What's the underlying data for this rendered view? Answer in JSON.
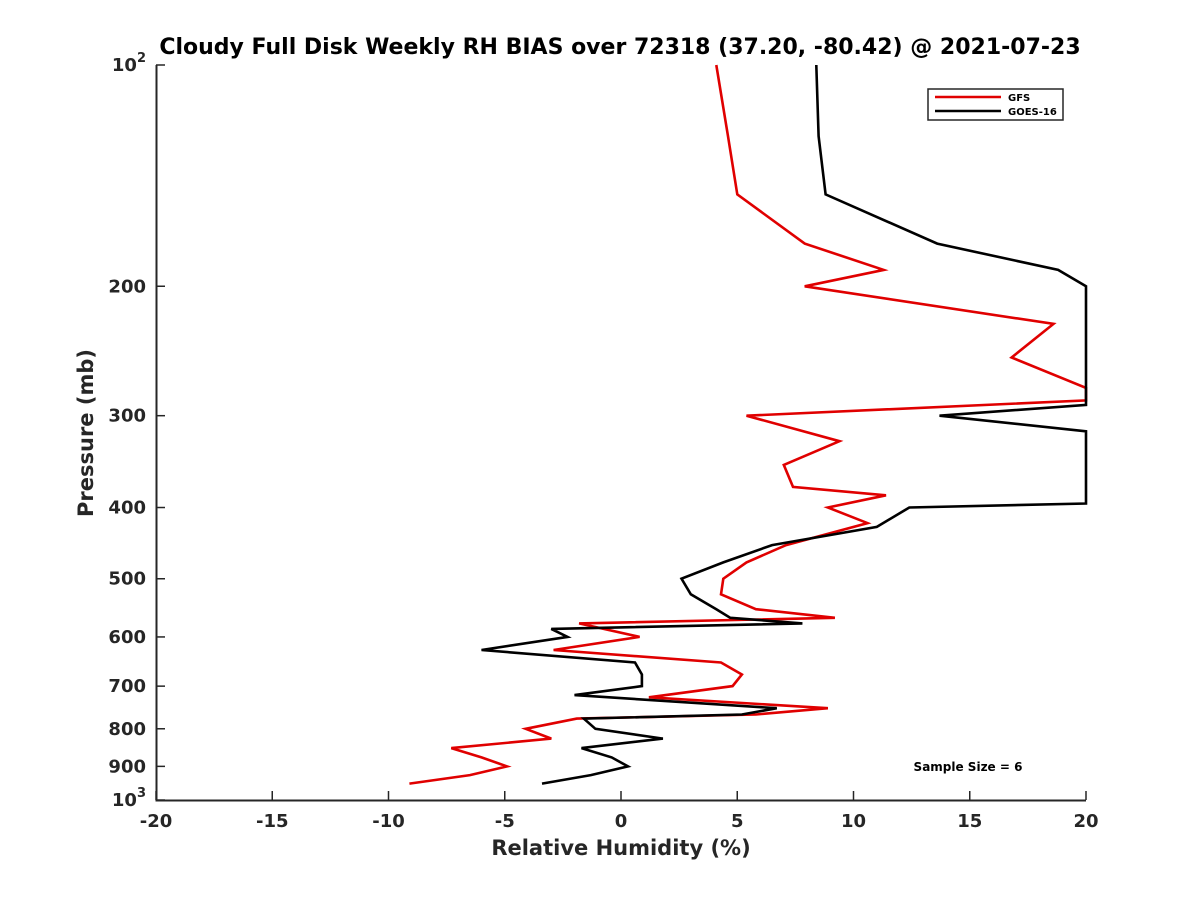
{
  "chart_data": {
    "type": "line",
    "title": "Cloudy Full Disk Weekly RH BIAS over 72318 (37.20, -80.42) @ 2021-07-23",
    "xlabel": "Relative Humidity (%)",
    "ylabel": "Pressure (mb)",
    "xlim": [
      -20,
      20
    ],
    "ylim": [
      100,
      1000
    ],
    "yscale": "log",
    "y_reversed": true,
    "grid": false,
    "legend_position": "top-right",
    "x_ticks": [
      -20,
      -15,
      -10,
      -5,
      0,
      5,
      10,
      15,
      20
    ],
    "x_tick_labels": [
      "-20",
      "-15",
      "-10",
      "-5",
      "0",
      "5",
      "10",
      "15",
      "20"
    ],
    "y_ticks": [
      100,
      200,
      300,
      400,
      500,
      600,
      700,
      800,
      900,
      1000
    ],
    "y_tick_labels": [
      {
        "base": "10",
        "exp": "2"
      },
      {
        "base": "200",
        "exp": ""
      },
      {
        "base": "300",
        "exp": ""
      },
      {
        "base": "400",
        "exp": ""
      },
      {
        "base": "500",
        "exp": ""
      },
      {
        "base": "600",
        "exp": ""
      },
      {
        "base": "700",
        "exp": ""
      },
      {
        "base": "800",
        "exp": ""
      },
      {
        "base": "900",
        "exp": ""
      },
      {
        "base": "10",
        "exp": "3"
      }
    ],
    "series": [
      {
        "name": "GFS",
        "color": "#e00000",
        "points": [
          [
            4.1,
            100
          ],
          [
            4.6,
            125
          ],
          [
            5.0,
            150
          ],
          [
            7.9,
            175
          ],
          [
            11.3,
            190
          ],
          [
            7.9,
            200
          ],
          [
            18.6,
            225
          ],
          [
            16.8,
            250
          ],
          [
            20.0,
            275
          ],
          [
            20.0,
            286
          ],
          [
            5.4,
            300
          ],
          [
            9.4,
            325
          ],
          [
            7.0,
            350
          ],
          [
            7.4,
            375
          ],
          [
            11.4,
            385
          ],
          [
            8.9,
            400
          ],
          [
            10.6,
            420
          ],
          [
            7.1,
            450
          ],
          [
            5.4,
            475
          ],
          [
            4.4,
            500
          ],
          [
            4.3,
            525
          ],
          [
            5.8,
            550
          ],
          [
            9.2,
            565
          ],
          [
            -1.8,
            575
          ],
          [
            0.8,
            600
          ],
          [
            -2.9,
            625
          ],
          [
            4.3,
            650
          ],
          [
            5.2,
            675
          ],
          [
            4.8,
            700
          ],
          [
            1.2,
            725
          ],
          [
            8.9,
            750
          ],
          [
            5.8,
            765
          ],
          [
            -1.9,
            775
          ],
          [
            -4.1,
            800
          ],
          [
            -3.0,
            825
          ],
          [
            -7.3,
            850
          ],
          [
            -6.0,
            875
          ],
          [
            -4.9,
            900
          ],
          [
            -6.5,
            925
          ],
          [
            -9.1,
            950
          ]
        ]
      },
      {
        "name": "GOES-16",
        "color": "#000000",
        "points": [
          [
            8.4,
            100
          ],
          [
            8.5,
            125
          ],
          [
            8.8,
            150
          ],
          [
            13.6,
            175
          ],
          [
            18.8,
            190
          ],
          [
            20.0,
            200
          ],
          [
            20.0,
            290
          ],
          [
            13.7,
            300
          ],
          [
            20.0,
            315
          ],
          [
            20.0,
            395
          ],
          [
            12.4,
            400
          ],
          [
            11.0,
            425
          ],
          [
            6.5,
            450
          ],
          [
            4.4,
            475
          ],
          [
            2.6,
            500
          ],
          [
            3.0,
            525
          ],
          [
            4.1,
            550
          ],
          [
            4.7,
            565
          ],
          [
            7.8,
            575
          ],
          [
            -3.0,
            585
          ],
          [
            -2.3,
            600
          ],
          [
            -6.0,
            625
          ],
          [
            0.6,
            650
          ],
          [
            0.9,
            675
          ],
          [
            0.9,
            700
          ],
          [
            -2.0,
            720
          ],
          [
            6.7,
            750
          ],
          [
            5.2,
            765
          ],
          [
            -1.6,
            775
          ],
          [
            -1.1,
            800
          ],
          [
            1.8,
            825
          ],
          [
            -1.7,
            850
          ],
          [
            -0.4,
            875
          ],
          [
            0.3,
            900
          ],
          [
            -1.3,
            925
          ],
          [
            -3.4,
            950
          ]
        ]
      }
    ],
    "annotations": [
      "Sample Size = 6"
    ]
  }
}
